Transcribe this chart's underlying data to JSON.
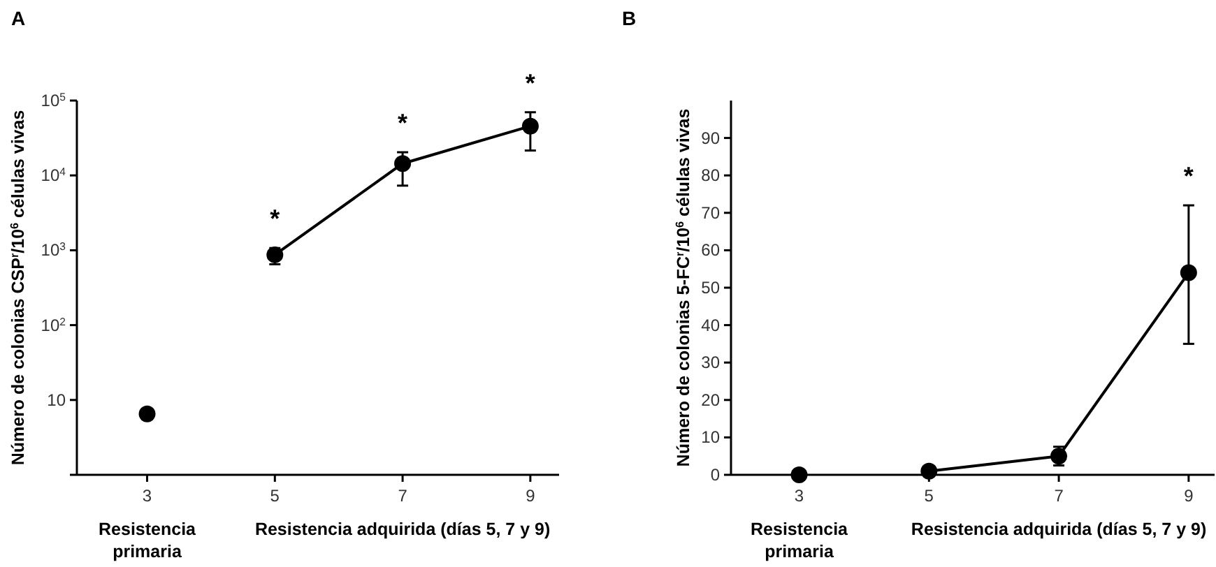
{
  "chart_data": [
    {
      "type": "line",
      "title": "A",
      "ylabel": "Número de colonias CSP$^{r}$/10$^{6}$ células vivas",
      "log": "y",
      "grid": false,
      "marker": "circle",
      "line_style": "solid",
      "xlim": [
        1.9,
        9.45
      ],
      "xticks": [
        3,
        5,
        7,
        9
      ],
      "ylim": [
        1,
        100000
      ],
      "yticks": [
        {
          "value": 1,
          "label": null
        },
        10,
        {
          "value": 100,
          "label": "10$^{2}$"
        },
        {
          "value": 1000,
          "label": "10$^{3}$"
        },
        {
          "value": 10000,
          "label": "10$^{4}$"
        },
        {
          "value": 100000,
          "label": "10$^{5}$"
        }
      ],
      "series": [
        {
          "type": "scatter",
          "color": "#000000",
          "x": [
            3
          ],
          "values": [
            6.5
          ],
          "errors": [
            [
              5.5,
              7.5
            ]
          ]
        },
        {
          "type": "line",
          "color": "#000000",
          "x": [
            5,
            7,
            9
          ],
          "values": [
            870,
            14400,
            45500
          ],
          "errors": [
            [
              650,
              1070
            ],
            [
              7300,
              20400
            ],
            [
              21500,
              69800
            ]
          ]
        }
      ],
      "annotations": [
        "Resistencia primaria",
        "Resistencia adquirida (días 5, 7 y 9)",
        "*",
        "*",
        "*"
      ]
    },
    {
      "type": "line",
      "title": "B",
      "ylabel": "Número de colonias 5-FC$^{r}$/10$^{6}$ células vivas",
      "grid": false,
      "marker": "circle",
      "line_style": "solid",
      "xlim": [
        1.95,
        9.4
      ],
      "xticks": [
        3,
        5,
        7,
        9
      ],
      "ylim": [
        0,
        100
      ],
      "yticks": [
        0,
        10,
        20,
        30,
        40,
        50,
        60,
        70,
        80,
        90
      ],
      "series": [
        {
          "type": "scatter",
          "color": "#000000",
          "x": [
            3
          ],
          "values": [
            0
          ]
        },
        {
          "type": "line",
          "color": "#000000",
          "x": [
            5,
            7,
            9
          ],
          "values": [
            1,
            5,
            54
          ],
          "errors": [
            null,
            [
              2.5,
              7.5
            ],
            [
              35,
              72
            ]
          ]
        }
      ],
      "annotations": [
        "Resistencia primaria",
        "Resistencia adquirida (días 5, 7 y 9)",
        "*"
      ]
    }
  ]
}
